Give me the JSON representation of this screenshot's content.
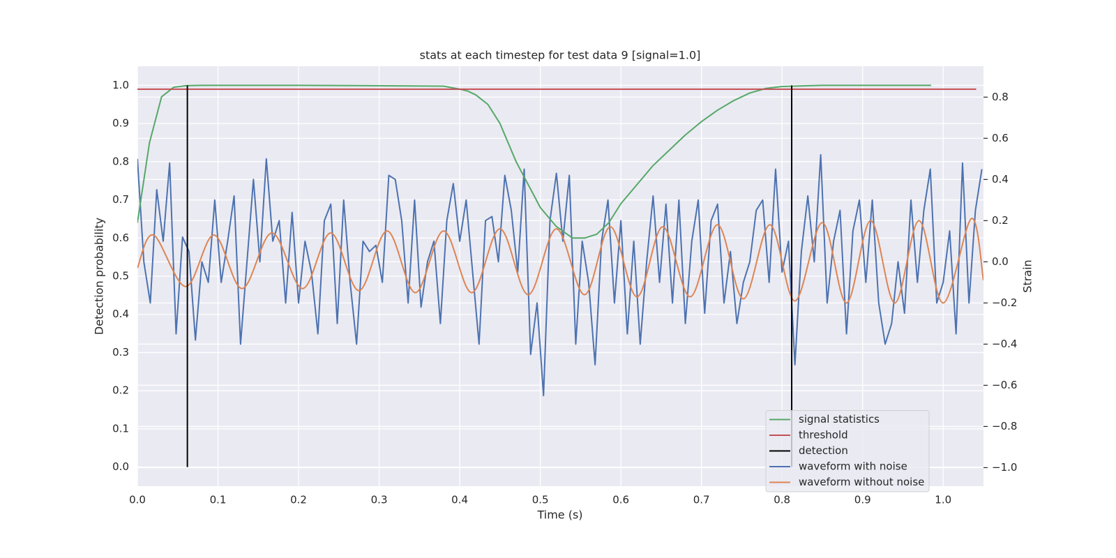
{
  "chart_data": {
    "type": "line",
    "title": "stats at each timestep for test data 9 [signal=1.0]",
    "xlabel": "Time (s)",
    "ylabel": "Detection probability",
    "y2label": "Strain",
    "xlim": [
      0,
      1.05
    ],
    "ylim": [
      -0.05,
      1.05
    ],
    "y2lim": [
      -1.09,
      0.95
    ],
    "grid": true,
    "legend": "lower right",
    "xticks": [
      {
        "value": 0,
        "label": "0.0"
      },
      {
        "value": 0.1,
        "label": "0.1"
      },
      {
        "value": 0.2,
        "label": "0.2"
      },
      {
        "value": 0.3,
        "label": "0.3"
      },
      {
        "value": 0.4,
        "label": "0.4"
      },
      {
        "value": 0.5,
        "label": "0.5"
      },
      {
        "value": 0.6,
        "label": "0.6"
      },
      {
        "value": 0.7,
        "label": "0.7"
      },
      {
        "value": 0.8,
        "label": "0.8"
      },
      {
        "value": 0.9,
        "label": "0.9"
      },
      {
        "value": 1,
        "label": "1.0"
      }
    ],
    "yticks": [
      {
        "value": 0,
        "label": "0.0"
      },
      {
        "value": 0.1,
        "label": "0.1"
      },
      {
        "value": 0.2,
        "label": "0.2"
      },
      {
        "value": 0.3,
        "label": "0.3"
      },
      {
        "value": 0.4,
        "label": "0.4"
      },
      {
        "value": 0.5,
        "label": "0.5"
      },
      {
        "value": 0.6,
        "label": "0.6"
      },
      {
        "value": 0.7,
        "label": "0.7"
      },
      {
        "value": 0.8,
        "label": "0.8"
      },
      {
        "value": 0.9,
        "label": "0.9"
      },
      {
        "value": 1,
        "label": "1.0"
      }
    ],
    "y2ticks": [
      {
        "value": -1,
        "label": "−1.0"
      },
      {
        "value": -0.8,
        "label": "−0.8"
      },
      {
        "value": -0.6,
        "label": "−0.6"
      },
      {
        "value": -0.4,
        "label": "−0.4"
      },
      {
        "value": -0.2,
        "label": "−0.2"
      },
      {
        "value": 0,
        "label": "0.0"
      },
      {
        "value": 0.2,
        "label": "0.2"
      },
      {
        "value": 0.4,
        "label": "0.4"
      },
      {
        "value": 0.6,
        "label": "0.6"
      },
      {
        "value": 0.8,
        "label": "0.8"
      }
    ],
    "series": [
      {
        "name": "signal statistics",
        "color": "#55a868",
        "x": [
          0,
          0.015,
          0.03,
          0.045,
          0.06,
          0.08,
          0.2,
          0.38,
          0.4,
          0.41,
          0.42,
          0.435,
          0.45,
          0.47,
          0.485,
          0.5,
          0.52,
          0.54,
          0.555,
          0.57,
          0.585,
          0.6,
          0.62,
          0.64,
          0.66,
          0.68,
          0.7,
          0.72,
          0.74,
          0.76,
          0.78,
          0.8,
          0.85,
          0.985
        ],
        "values": [
          0.64,
          0.85,
          0.97,
          0.995,
          0.999,
          1.0,
          1.0,
          0.998,
          0.99,
          0.985,
          0.975,
          0.95,
          0.9,
          0.8,
          0.74,
          0.68,
          0.63,
          0.6,
          0.6,
          0.61,
          0.64,
          0.69,
          0.74,
          0.79,
          0.83,
          0.87,
          0.905,
          0.935,
          0.96,
          0.98,
          0.992,
          0.997,
          1.0,
          1.0
        ]
      },
      {
        "name": "threshold",
        "color": "#c44e52",
        "x": [
          0,
          1.041
        ],
        "values": [
          0.99,
          0.99
        ]
      },
      {
        "name": "detection",
        "color": "#000000",
        "type": "vlines",
        "x": [
          0.062,
          0.812
        ],
        "ymin": [
          0,
          0
        ],
        "ymax": [
          1,
          1
        ]
      },
      {
        "name": "waveform with noise",
        "color": "#4c72b0",
        "axis": "y2",
        "x": [
          0,
          0.008,
          0.016,
          0.024,
          0.032,
          0.04,
          0.048,
          0.056,
          0.064,
          0.072,
          0.08,
          0.088,
          0.096,
          0.104,
          0.112,
          0.12,
          0.128,
          0.136,
          0.144,
          0.152,
          0.16,
          0.168,
          0.176,
          0.184,
          0.192,
          0.2,
          0.208,
          0.216,
          0.224,
          0.232,
          0.24,
          0.248,
          0.256,
          0.264,
          0.272,
          0.28,
          0.288,
          0.296,
          0.304,
          0.312,
          0.32,
          0.328,
          0.336,
          0.344,
          0.352,
          0.36,
          0.368,
          0.376,
          0.384,
          0.392,
          0.4,
          0.408,
          0.416,
          0.424,
          0.432,
          0.44,
          0.448,
          0.456,
          0.464,
          0.472,
          0.48,
          0.488,
          0.496,
          0.504,
          0.512,
          0.52,
          0.528,
          0.536,
          0.544,
          0.552,
          0.56,
          0.568,
          0.576,
          0.584,
          0.592,
          0.6,
          0.608,
          0.616,
          0.624,
          0.632,
          0.64,
          0.648,
          0.656,
          0.664,
          0.672,
          0.68,
          0.688,
          0.696,
          0.704,
          0.712,
          0.72,
          0.728,
          0.736,
          0.744,
          0.752,
          0.76,
          0.768,
          0.776,
          0.784,
          0.792,
          0.8,
          0.808,
          0.816,
          0.824,
          0.832,
          0.84,
          0.848,
          0.856,
          0.864,
          0.872,
          0.88,
          0.888,
          0.896,
          0.904,
          0.912,
          0.92,
          0.928,
          0.936,
          0.944,
          0.952,
          0.96,
          0.968,
          0.976,
          0.984,
          0.992,
          1.0,
          1.008,
          1.016,
          1.024,
          1.032,
          1.04,
          1.048
        ],
        "values": [
          0.5,
          0.0,
          -0.2,
          0.35,
          0.1,
          0.48,
          -0.35,
          0.12,
          0.05,
          -0.38,
          0.0,
          -0.1,
          0.3,
          -0.1,
          0.1,
          0.32,
          -0.4,
          0.0,
          0.4,
          0.0,
          0.5,
          0.1,
          0.2,
          -0.2,
          0.24,
          -0.2,
          0.1,
          -0.05,
          -0.35,
          0.2,
          0.28,
          -0.3,
          0.3,
          -0.1,
          -0.4,
          0.1,
          0.05,
          0.08,
          -0.1,
          0.42,
          0.4,
          0.2,
          -0.2,
          0.3,
          -0.22,
          0.0,
          0.1,
          -0.3,
          0.2,
          0.38,
          0.1,
          0.3,
          -0.05,
          -0.4,
          0.2,
          0.22,
          0.0,
          0.42,
          0.25,
          -0.05,
          0.45,
          -0.45,
          -0.2,
          -0.65,
          0.2,
          0.43,
          0.1,
          0.42,
          -0.4,
          0.1,
          -0.1,
          -0.5,
          0.1,
          0.3,
          -0.2,
          0.2,
          -0.35,
          0.1,
          -0.4,
          0.0,
          0.32,
          -0.1,
          0.28,
          -0.2,
          0.3,
          -0.3,
          0.1,
          0.3,
          -0.25,
          0.2,
          0.28,
          -0.2,
          0.05,
          -0.3,
          -0.1,
          0.0,
          0.25,
          0.3,
          -0.1,
          0.45,
          -0.05,
          0.1,
          -0.5,
          0.05,
          0.32,
          0.0,
          0.52,
          -0.2,
          0.1,
          0.25,
          -0.35,
          0.15,
          0.3,
          -0.1,
          0.3,
          -0.2,
          -0.4,
          -0.3,
          0.0,
          -0.25,
          0.3,
          -0.1,
          0.25,
          0.45,
          -0.2,
          -0.1,
          0.15,
          -0.35,
          0.48,
          -0.2,
          0.25,
          0.45
        ]
      },
      {
        "name": "waveform without noise",
        "color": "#dd8452",
        "axis": "y2",
        "smooth": true,
        "x": [
          0,
          0.02,
          0.06,
          0.095,
          0.13,
          0.167,
          0.205,
          0.24,
          0.275,
          0.31,
          0.345,
          0.38,
          0.415,
          0.45,
          0.485,
          0.52,
          0.555,
          0.587,
          0.62,
          0.652,
          0.686,
          0.72,
          0.752,
          0.785,
          0.816,
          0.85,
          0.88,
          0.91,
          0.94,
          0.97,
          1.0,
          1.035,
          1.05
        ],
        "values": [
          -0.03,
          0.13,
          -0.12,
          0.13,
          -0.13,
          0.14,
          -0.13,
          0.14,
          -0.14,
          0.15,
          -0.15,
          0.15,
          -0.15,
          0.16,
          -0.16,
          0.16,
          -0.16,
          0.17,
          -0.17,
          0.17,
          -0.17,
          0.18,
          -0.18,
          0.18,
          -0.19,
          0.19,
          -0.2,
          0.2,
          -0.2,
          0.2,
          -0.2,
          0.21,
          -0.09
        ]
      }
    ]
  }
}
